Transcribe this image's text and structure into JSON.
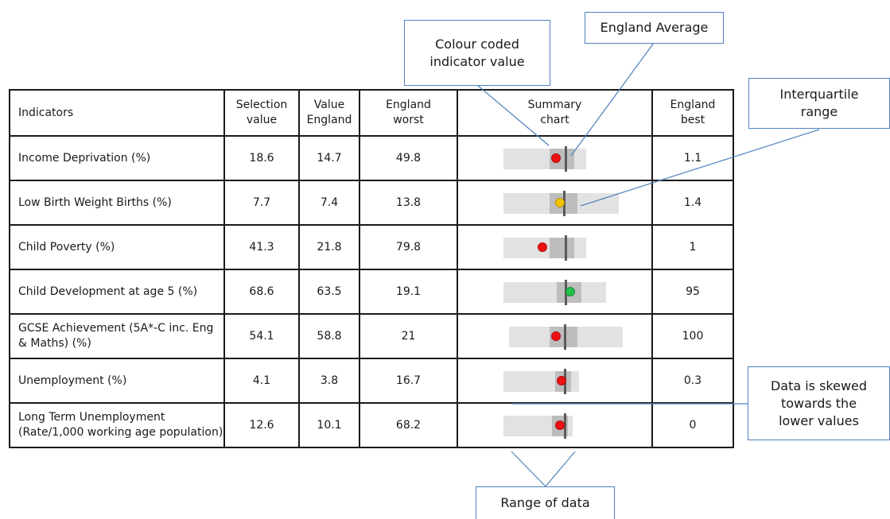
{
  "table": {
    "headers": {
      "indicators": "Indicators",
      "selection_value": "Selection\nvalue",
      "value_england": "Value\nEngland",
      "england_worst": "England\nworst",
      "summary_chart": "Summary\nchart",
      "england_best": "England\nbest"
    },
    "rows": [
      {
        "indicator": "Income Deprivation (%)",
        "selection_value": "18.6",
        "value_england": "14.7",
        "england_worst": "49.8",
        "england_best": "1.1"
      },
      {
        "indicator": "Low Birth Weight Births (%)",
        "selection_value": "7.7",
        "value_england": "7.4",
        "england_worst": "13.8",
        "england_best": "1.4"
      },
      {
        "indicator": "Child Poverty (%)",
        "selection_value": "41.3",
        "value_england": "21.8",
        "england_worst": "79.8",
        "england_best": "1"
      },
      {
        "indicator": "Child Development at age 5 (%)",
        "selection_value": "68.6",
        "value_england": "63.5",
        "england_worst": "19.1",
        "england_best": "95"
      },
      {
        "indicator": "GCSE Achievement (5A*-C inc. Eng & Maths) (%)",
        "selection_value": "54.1",
        "value_england": "58.8",
        "england_worst": "21",
        "england_best": "100"
      },
      {
        "indicator": "Unemployment (%)",
        "selection_value": "4.1",
        "value_england": "3.8",
        "england_worst": "16.7",
        "england_best": "0.3"
      },
      {
        "indicator": "Long Term Unemployment (Rate/1,000 working age population)",
        "selection_value": "12.6",
        "value_england": "10.1",
        "england_worst": "68.2",
        "england_best": "0"
      }
    ]
  },
  "summary_status": [
    "red",
    "amber",
    "red",
    "green",
    "red",
    "red",
    "red"
  ],
  "status_colors": {
    "red": "#ee1111",
    "amber": "#f5c400",
    "green": "#22c14a"
  },
  "colors": {
    "range": "#e2e2e2",
    "iqr": "#bdbdbd",
    "average_line": "#595959",
    "callout_border": "#4f81bd"
  },
  "callouts": {
    "colour_coded": "Colour coded\nindicator value",
    "england_average": "England Average",
    "interquartile_range": "Interquartile\nrange",
    "data_skewed": "Data is skewed\ntowards the\nlower values",
    "range_of_data": "Range of data"
  }
}
